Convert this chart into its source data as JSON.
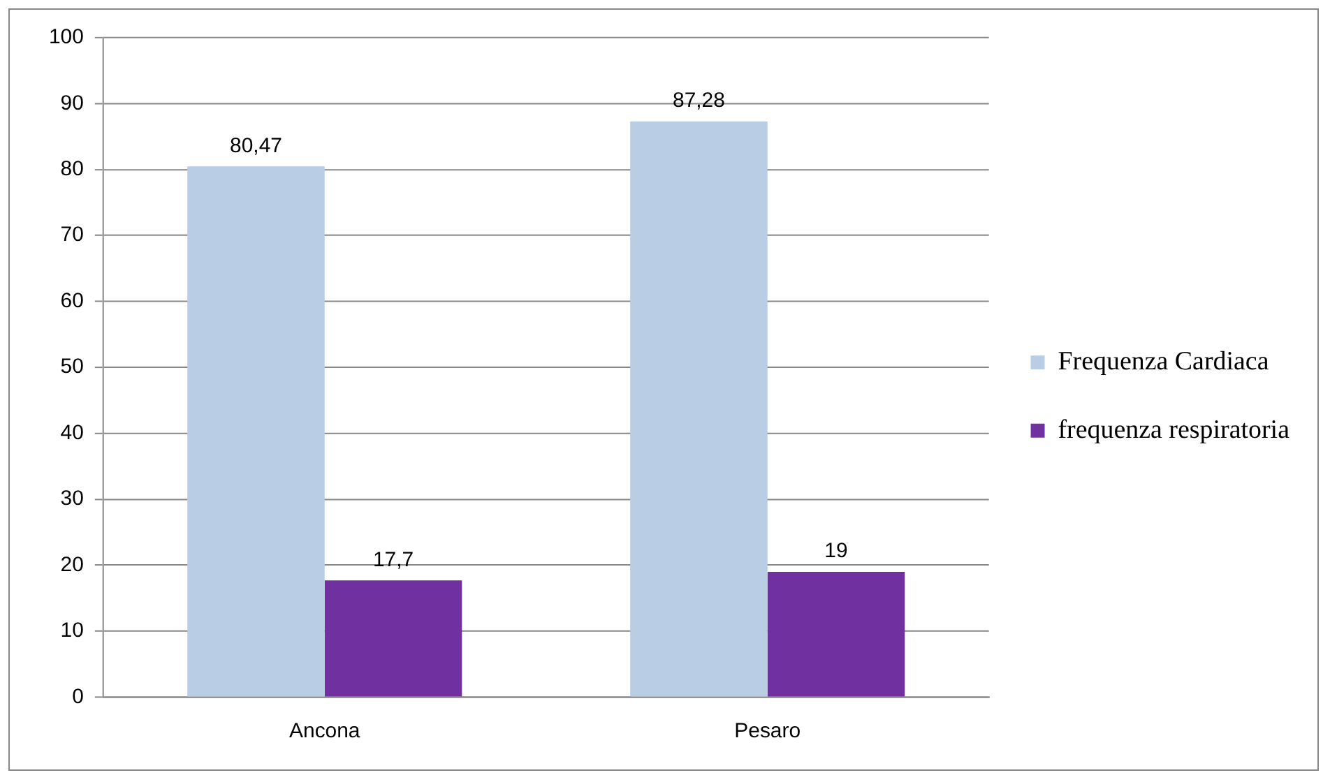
{
  "chart_data": {
    "type": "bar",
    "categories": [
      "Ancona",
      "Pesaro"
    ],
    "series": [
      {
        "name": "Frequenza Cardiaca",
        "color": "#b9cde5",
        "values": [
          80.47,
          87.28
        ],
        "value_labels": [
          "80,47",
          "87,28"
        ]
      },
      {
        "name": "frequenza respiratoria",
        "color": "#7030a0",
        "values": [
          17.7,
          19
        ],
        "value_labels": [
          "17,7",
          "19"
        ]
      }
    ],
    "ylim": [
      0,
      100
    ],
    "yticks": [
      0,
      10,
      20,
      30,
      40,
      50,
      60,
      70,
      80,
      90,
      100
    ],
    "grid": "y",
    "legend": "right"
  }
}
